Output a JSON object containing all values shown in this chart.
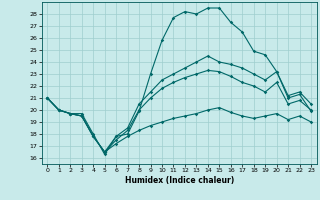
{
  "xlabel": "Humidex (Indice chaleur)",
  "xlim": [
    -0.5,
    23.5
  ],
  "ylim": [
    15.5,
    29.0
  ],
  "xticks": [
    0,
    1,
    2,
    3,
    4,
    5,
    6,
    7,
    8,
    9,
    10,
    11,
    12,
    13,
    14,
    15,
    16,
    17,
    18,
    19,
    20,
    21,
    22,
    23
  ],
  "yticks": [
    16,
    17,
    18,
    19,
    20,
    21,
    22,
    23,
    24,
    25,
    26,
    27,
    28
  ],
  "bg_color": "#c8eaea",
  "grid_color": "#9fcece",
  "line_color": "#006868",
  "lines": [
    [
      21.0,
      20.0,
      19.7,
      19.7,
      18.0,
      16.3,
      17.8,
      18.0,
      19.9,
      23.0,
      25.8,
      27.7,
      28.2,
      28.0,
      28.5,
      28.5,
      27.3,
      26.5,
      24.9,
      24.6,
      23.2,
      21.0,
      21.3,
      19.9
    ],
    [
      21.0,
      20.0,
      19.7,
      19.5,
      17.8,
      16.5,
      17.8,
      18.5,
      20.5,
      21.5,
      22.5,
      23.0,
      23.5,
      24.0,
      24.5,
      24.0,
      23.8,
      23.5,
      23.0,
      22.5,
      23.2,
      21.2,
      21.5,
      20.5
    ],
    [
      21.0,
      20.0,
      19.7,
      19.5,
      17.8,
      16.5,
      17.5,
      18.3,
      20.0,
      21.0,
      21.8,
      22.3,
      22.7,
      23.0,
      23.3,
      23.2,
      22.8,
      22.3,
      22.0,
      21.5,
      22.3,
      20.5,
      20.8,
      20.0
    ],
    [
      21.0,
      20.0,
      19.7,
      19.5,
      17.8,
      16.5,
      17.2,
      17.8,
      18.3,
      18.7,
      19.0,
      19.3,
      19.5,
      19.7,
      20.0,
      20.2,
      19.8,
      19.5,
      19.3,
      19.5,
      19.7,
      19.2,
      19.5,
      19.0
    ]
  ]
}
